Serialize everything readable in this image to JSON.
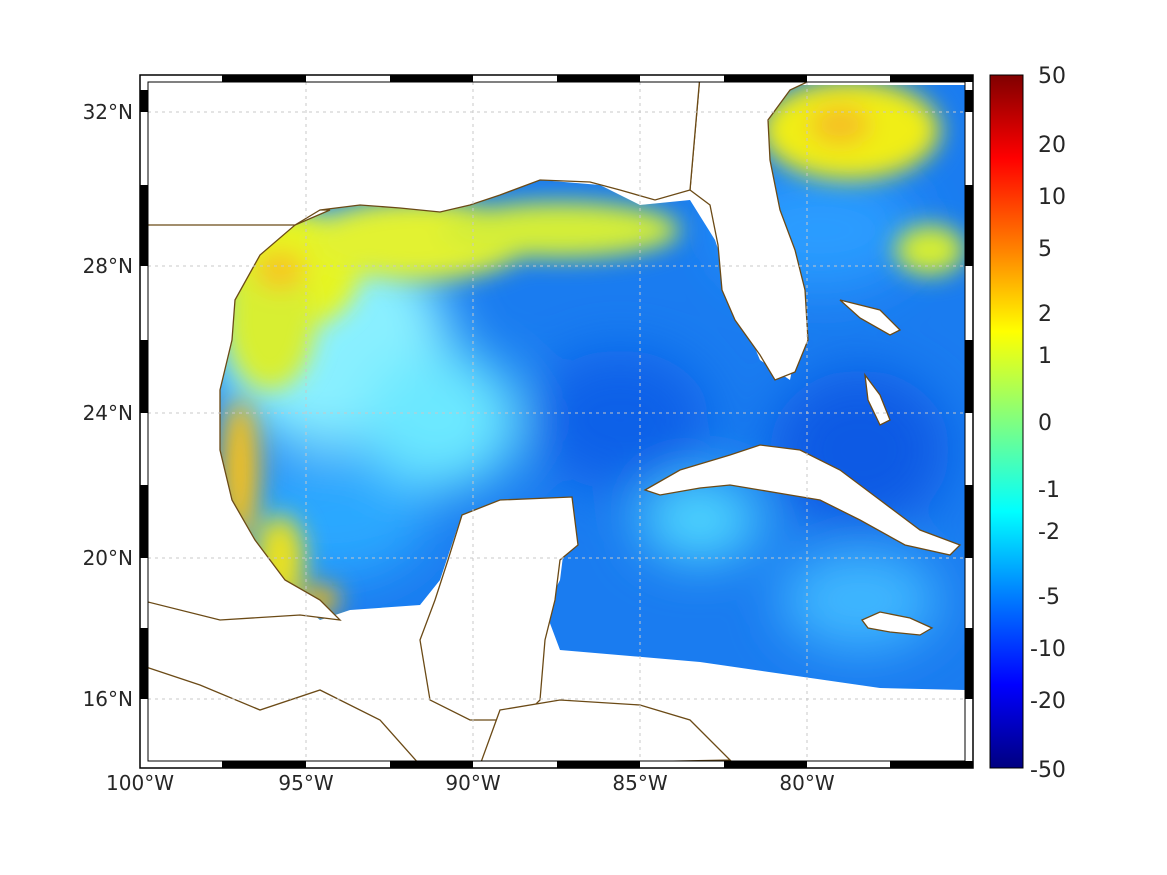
{
  "map": {
    "lon_labels": [
      "100°W",
      "95°W",
      "90°W",
      "85°W",
      "80°W"
    ],
    "lat_labels": [
      "32°N",
      "28°N",
      "24°N",
      "20°N",
      "16°N"
    ]
  },
  "colorbar": {
    "labels": [
      "50",
      "20",
      "10",
      "5",
      "2",
      "1",
      "0",
      "-1",
      "-2",
      "-5",
      "-10",
      "-20",
      "-50"
    ]
  },
  "colors": {
    "coast": "#6b4a16",
    "land": "#ffffff",
    "grid": "#c8c8c8"
  }
}
